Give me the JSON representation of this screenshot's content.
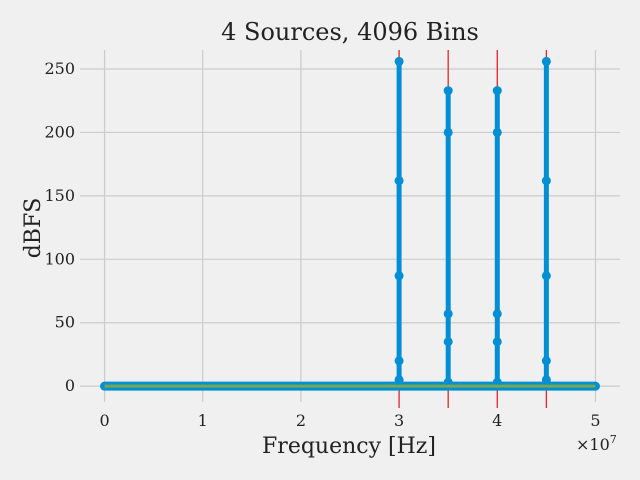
{
  "chart_data": {
    "type": "line",
    "title": "4 Sources, 4096 Bins",
    "xlabel": "Frequency [Hz]",
    "ylabel": "dBFS",
    "x_offset_label": "×10^7",
    "x_offset_base": "×10",
    "x_offset_exp": "7",
    "xlim": [
      -2500000,
      52500000
    ],
    "ylim": [
      -12.5,
      265
    ],
    "grid": true,
    "x_ticks": [
      {
        "value": 0,
        "label": "0"
      },
      {
        "value": 10000000,
        "label": "1"
      },
      {
        "value": 20000000,
        "label": "2"
      },
      {
        "value": 30000000,
        "label": "3"
      },
      {
        "value": 40000000,
        "label": "4"
      },
      {
        "value": 50000000,
        "label": "5"
      }
    ],
    "y_ticks": [
      {
        "value": 0,
        "label": "0"
      },
      {
        "value": 50,
        "label": "50"
      },
      {
        "value": 100,
        "label": "100"
      },
      {
        "value": 150,
        "label": "150"
      },
      {
        "value": 200,
        "label": "200"
      },
      {
        "value": 250,
        "label": "250"
      }
    ],
    "source_markers": [
      30000000,
      35000000,
      40000000,
      45000000
    ],
    "stems": [
      {
        "x": 30000000,
        "points": [
          256,
          162,
          87,
          20,
          5
        ]
      },
      {
        "x": 35000000,
        "points": [
          233,
          200,
          57,
          35,
          3
        ]
      },
      {
        "x": 40000000,
        "points": [
          233,
          200,
          57,
          35,
          3
        ]
      },
      {
        "x": 45000000,
        "points": [
          256,
          162,
          87,
          20,
          5
        ]
      }
    ],
    "baseline": {
      "x_start": 0,
      "x_end": 50000000,
      "y": 0
    },
    "colors": {
      "stem": "#008fd5",
      "source_marker": "#e5262d",
      "baseline_line": "#77a850",
      "grid": "#cbcbcb",
      "background": "#f0f0f0"
    }
  }
}
